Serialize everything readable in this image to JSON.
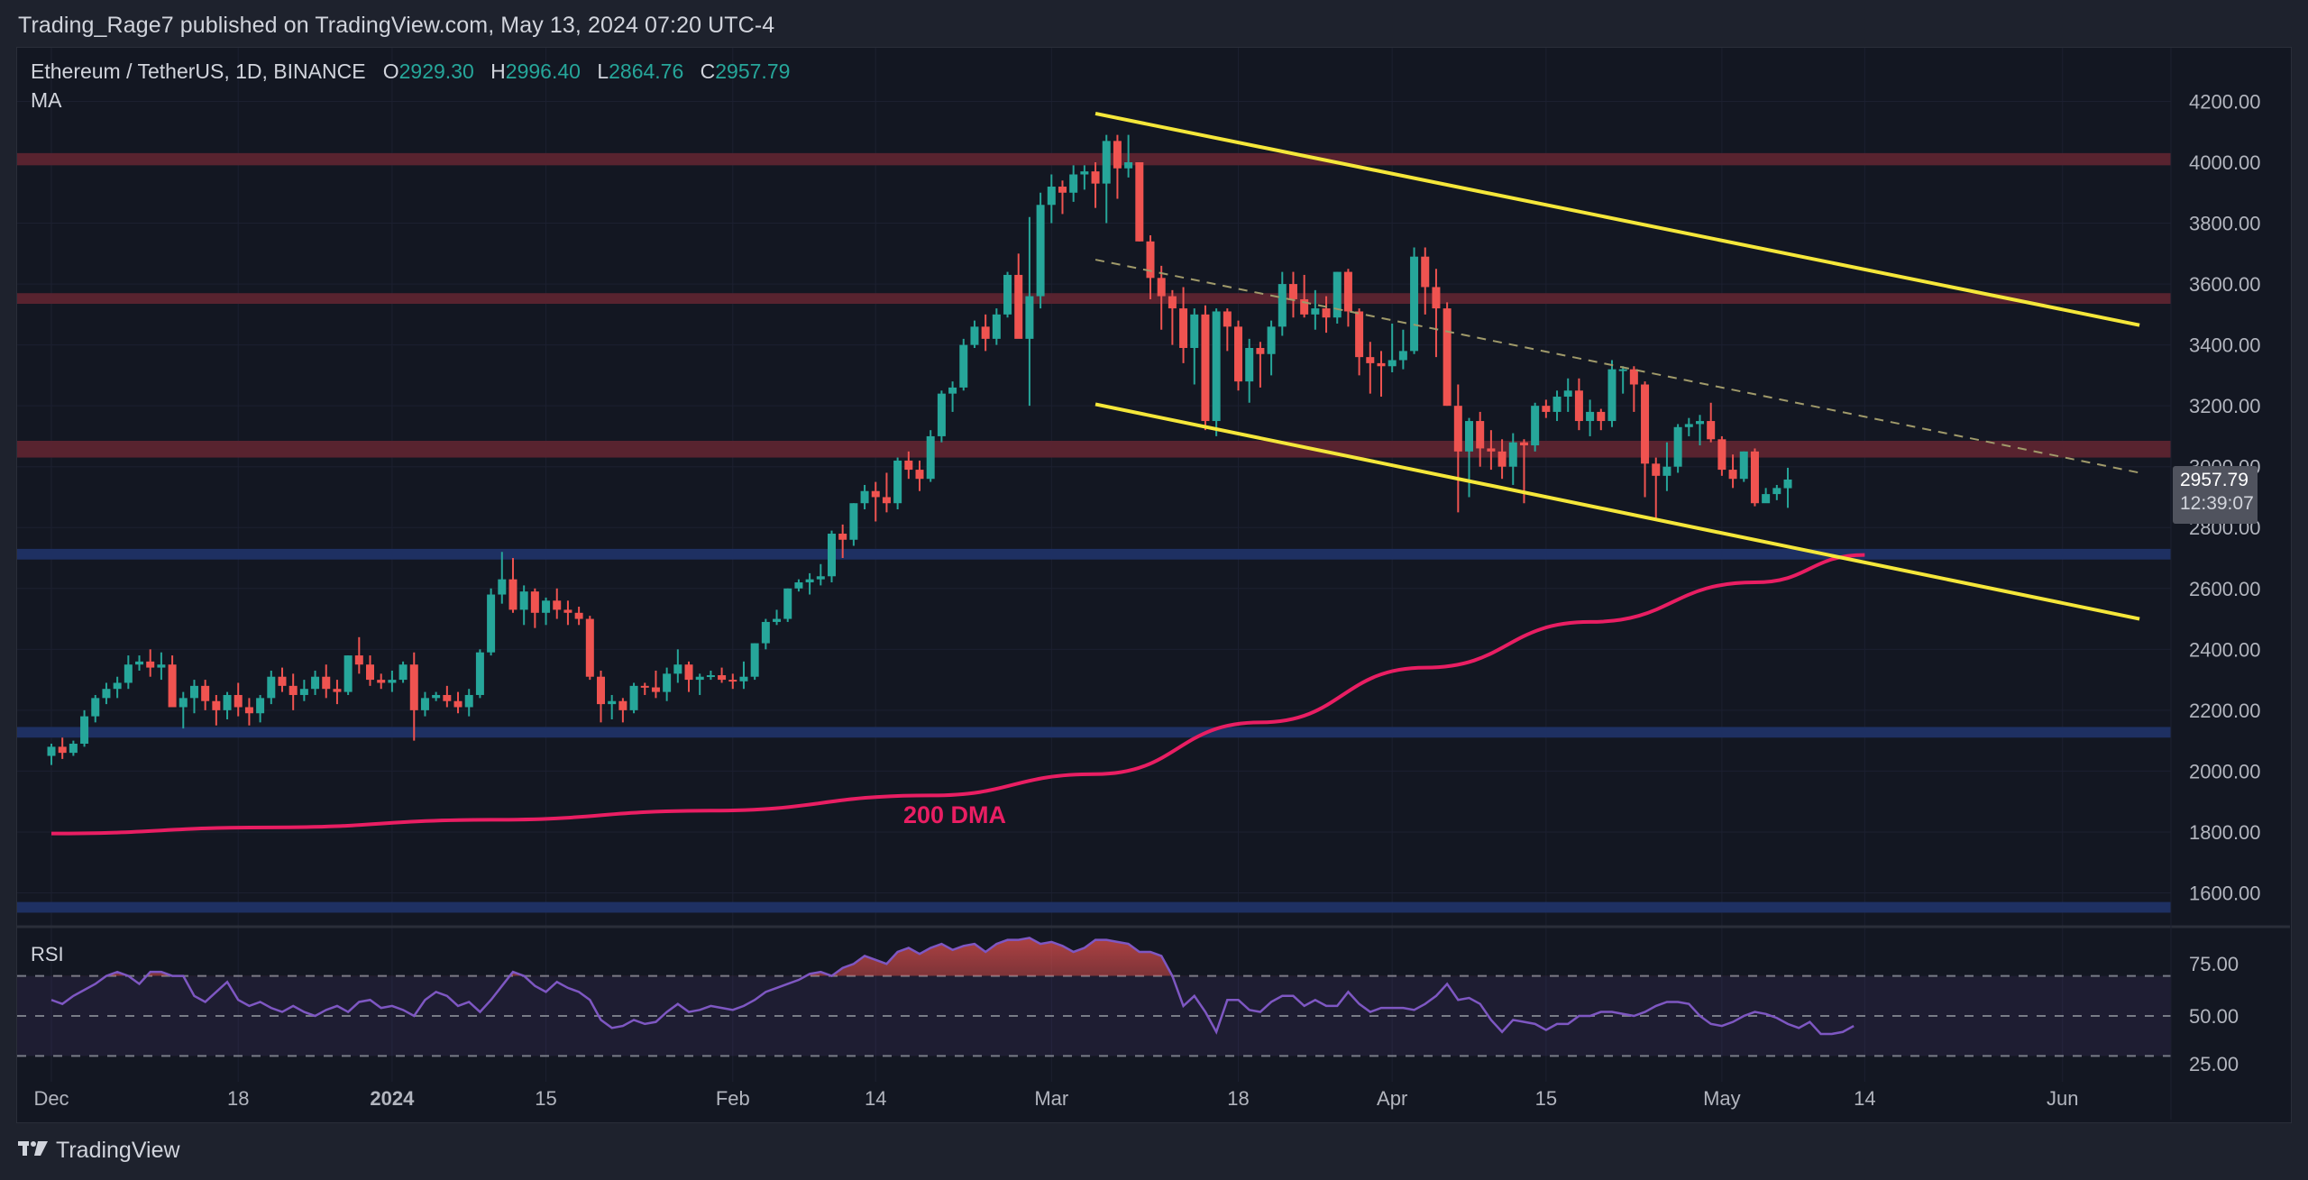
{
  "header": {
    "published_text": "Trading_Rage7 published on TradingView.com, May 13, 2024 07:20 UTC-4"
  },
  "legend": {
    "symbol": "Ethereum / TetherUS, 1D, BINANCE",
    "open_label": "O",
    "open": "2929.30",
    "high_label": "H",
    "high": "2996.40",
    "low_label": "L",
    "low": "2864.76",
    "close_label": "C",
    "close": "2957.79",
    "indicator": "MA"
  },
  "price_tag": {
    "price": "2957.79",
    "countdown": "12:39:07"
  },
  "annotations": {
    "dma_label": "200 DMA"
  },
  "rsi": {
    "label": "RSI"
  },
  "footer": {
    "brand": "TradingView",
    "logo": "17"
  },
  "colors": {
    "up": "#26a69a",
    "down": "#ef5350",
    "background": "#131722",
    "resistance_zone": "#5c2430",
    "support_zone": "#1f3166",
    "channel": "#f5e73a",
    "dma": "#e91e63",
    "rsi_line": "#7e57c2"
  },
  "chart_data": {
    "type": "candlestick",
    "title": "Ethereum / TetherUS, 1D, BINANCE",
    "xlabel": "",
    "ylabel": "",
    "ylim": [
      1500,
      4300
    ],
    "y_ticks": [
      "4200.00",
      "4000.00",
      "3800.00",
      "3600.00",
      "3400.00",
      "3200.00",
      "3000.00",
      "2800.00",
      "2600.00",
      "2400.00",
      "2200.00",
      "2000.00",
      "1800.00",
      "1600.00"
    ],
    "x_ticks": [
      {
        "label": "Dec",
        "day": 0,
        "bold": false
      },
      {
        "label": "18",
        "day": 17,
        "bold": false
      },
      {
        "label": "2024",
        "day": 31,
        "bold": true
      },
      {
        "label": "15",
        "day": 45,
        "bold": false
      },
      {
        "label": "Feb",
        "day": 62,
        "bold": false
      },
      {
        "label": "14",
        "day": 75,
        "bold": false
      },
      {
        "label": "Mar",
        "day": 91,
        "bold": false
      },
      {
        "label": "18",
        "day": 108,
        "bold": false
      },
      {
        "label": "Apr",
        "day": 122,
        "bold": false
      },
      {
        "label": "15",
        "day": 136,
        "bold": false
      },
      {
        "label": "May",
        "day": 152,
        "bold": false
      },
      {
        "label": "14",
        "day": 165,
        "bold": false
      },
      {
        "label": "Jun",
        "day": 183,
        "bold": false
      }
    ],
    "start_date": "2023-12-01",
    "candles_ohlc": [
      [
        2050,
        2090,
        2020,
        2080
      ],
      [
        2080,
        2110,
        2040,
        2060
      ],
      [
        2060,
        2100,
        2050,
        2090
      ],
      [
        2090,
        2200,
        2080,
        2180
      ],
      [
        2180,
        2250,
        2160,
        2240
      ],
      [
        2240,
        2290,
        2220,
        2270
      ],
      [
        2270,
        2310,
        2240,
        2290
      ],
      [
        2290,
        2380,
        2270,
        2350
      ],
      [
        2350,
        2380,
        2330,
        2360
      ],
      [
        2360,
        2400,
        2310,
        2340
      ],
      [
        2340,
        2390,
        2300,
        2350
      ],
      [
        2350,
        2380,
        2230,
        2210
      ],
      [
        2210,
        2260,
        2140,
        2240
      ],
      [
        2240,
        2300,
        2190,
        2280
      ],
      [
        2280,
        2300,
        2200,
        2230
      ],
      [
        2230,
        2250,
        2150,
        2200
      ],
      [
        2200,
        2260,
        2170,
        2250
      ],
      [
        2250,
        2290,
        2180,
        2210
      ],
      [
        2210,
        2240,
        2150,
        2190
      ],
      [
        2190,
        2250,
        2160,
        2240
      ],
      [
        2240,
        2330,
        2220,
        2310
      ],
      [
        2310,
        2340,
        2260,
        2280
      ],
      [
        2280,
        2320,
        2200,
        2250
      ],
      [
        2250,
        2300,
        2230,
        2270
      ],
      [
        2270,
        2330,
        2250,
        2310
      ],
      [
        2310,
        2350,
        2240,
        2270
      ],
      [
        2270,
        2300,
        2220,
        2260
      ],
      [
        2260,
        2380,
        2250,
        2380
      ],
      [
        2380,
        2440,
        2320,
        2350
      ],
      [
        2350,
        2380,
        2280,
        2300
      ],
      [
        2300,
        2320,
        2270,
        2290
      ],
      [
        2290,
        2330,
        2260,
        2300
      ],
      [
        2300,
        2360,
        2290,
        2350
      ],
      [
        2350,
        2390,
        2100,
        2200
      ],
      [
        2200,
        2260,
        2180,
        2240
      ],
      [
        2240,
        2260,
        2230,
        2250
      ],
      [
        2250,
        2280,
        2210,
        2230
      ],
      [
        2230,
        2260,
        2190,
        2210
      ],
      [
        2210,
        2270,
        2180,
        2250
      ],
      [
        2250,
        2400,
        2240,
        2390
      ],
      [
        2390,
        2600,
        2380,
        2580
      ],
      [
        2580,
        2720,
        2550,
        2630
      ],
      [
        2630,
        2700,
        2520,
        2530
      ],
      [
        2530,
        2610,
        2480,
        2590
      ],
      [
        2590,
        2600,
        2470,
        2520
      ],
      [
        2520,
        2570,
        2480,
        2560
      ],
      [
        2560,
        2600,
        2500,
        2530
      ],
      [
        2530,
        2560,
        2480,
        2520
      ],
      [
        2520,
        2540,
        2480,
        2500
      ],
      [
        2500,
        2510,
        2300,
        2310
      ],
      [
        2310,
        2330,
        2160,
        2220
      ],
      [
        2220,
        2250,
        2170,
        2230
      ],
      [
        2230,
        2240,
        2160,
        2200
      ],
      [
        2200,
        2290,
        2190,
        2280
      ],
      [
        2280,
        2290,
        2250,
        2275
      ],
      [
        2275,
        2330,
        2240,
        2260
      ],
      [
        2260,
        2340,
        2230,
        2320
      ],
      [
        2320,
        2400,
        2290,
        2350
      ],
      [
        2350,
        2360,
        2260,
        2300
      ],
      [
        2300,
        2320,
        2250,
        2310
      ],
      [
        2310,
        2330,
        2300,
        2315
      ],
      [
        2315,
        2340,
        2290,
        2300
      ],
      [
        2300,
        2320,
        2270,
        2295
      ],
      [
        2295,
        2360,
        2270,
        2310
      ],
      [
        2310,
        2420,
        2300,
        2420
      ],
      [
        2420,
        2500,
        2400,
        2490
      ],
      [
        2490,
        2530,
        2480,
        2500
      ],
      [
        2500,
        2600,
        2490,
        2600
      ],
      [
        2600,
        2630,
        2590,
        2620
      ],
      [
        2620,
        2650,
        2580,
        2630
      ],
      [
        2630,
        2680,
        2610,
        2640
      ],
      [
        2640,
        2790,
        2620,
        2780
      ],
      [
        2780,
        2810,
        2700,
        2760
      ],
      [
        2760,
        2880,
        2740,
        2880
      ],
      [
        2880,
        2940,
        2860,
        2920
      ],
      [
        2920,
        2950,
        2820,
        2900
      ],
      [
        2900,
        2980,
        2850,
        2880
      ],
      [
        2880,
        3030,
        2860,
        3020
      ],
      [
        3020,
        3050,
        2960,
        2990
      ],
      [
        2990,
        3020,
        2920,
        2960
      ],
      [
        2960,
        3120,
        2950,
        3100
      ],
      [
        3100,
        3250,
        3080,
        3240
      ],
      [
        3240,
        3280,
        3180,
        3260
      ],
      [
        3260,
        3420,
        3250,
        3400
      ],
      [
        3400,
        3480,
        3390,
        3460
      ],
      [
        3460,
        3500,
        3380,
        3420
      ],
      [
        3420,
        3520,
        3400,
        3500
      ],
      [
        3500,
        3640,
        3490,
        3630
      ],
      [
        3630,
        3700,
        3600,
        3420
      ],
      [
        3420,
        3820,
        3200,
        3560
      ],
      [
        3560,
        3900,
        3520,
        3860
      ],
      [
        3860,
        3960,
        3800,
        3920
      ],
      [
        3920,
        3940,
        3830,
        3900
      ],
      [
        3900,
        3990,
        3870,
        3960
      ],
      [
        3960,
        3990,
        3910,
        3970
      ],
      [
        3970,
        4000,
        3850,
        3930
      ],
      [
        3930,
        4090,
        3800,
        4070
      ],
      [
        4070,
        4090,
        3880,
        3980
      ],
      [
        3980,
        4090,
        3950,
        4000
      ],
      [
        4000,
        3990,
        3740,
        3740
      ],
      [
        3740,
        3760,
        3550,
        3620
      ],
      [
        3620,
        3660,
        3450,
        3560
      ],
      [
        3560,
        3580,
        3400,
        3520
      ],
      [
        3520,
        3590,
        3340,
        3390
      ],
      [
        3390,
        3520,
        3270,
        3500
      ],
      [
        3500,
        3530,
        3120,
        3150
      ],
      [
        3150,
        3520,
        3100,
        3510
      ],
      [
        3510,
        3520,
        3380,
        3460
      ],
      [
        3460,
        3480,
        3250,
        3280
      ],
      [
        3280,
        3420,
        3210,
        3390
      ],
      [
        3390,
        3410,
        3260,
        3370
      ],
      [
        3370,
        3480,
        3300,
        3460
      ],
      [
        3460,
        3640,
        3430,
        3600
      ],
      [
        3600,
        3640,
        3490,
        3550
      ],
      [
        3550,
        3630,
        3490,
        3500
      ],
      [
        3500,
        3580,
        3450,
        3520
      ],
      [
        3520,
        3560,
        3440,
        3490
      ],
      [
        3490,
        3640,
        3470,
        3640
      ],
      [
        3640,
        3650,
        3460,
        3510
      ],
      [
        3510,
        3520,
        3300,
        3360
      ],
      [
        3360,
        3410,
        3240,
        3340
      ],
      [
        3340,
        3380,
        3230,
        3330
      ],
      [
        3330,
        3470,
        3310,
        3350
      ],
      [
        3350,
        3450,
        3320,
        3380
      ],
      [
        3380,
        3720,
        3370,
        3690
      ],
      [
        3690,
        3720,
        3500,
        3590
      ],
      [
        3590,
        3650,
        3360,
        3520
      ],
      [
        3520,
        3540,
        3200,
        3200
      ],
      [
        3200,
        3270,
        2850,
        3050
      ],
      [
        3050,
        3160,
        2900,
        3150
      ],
      [
        3150,
        3180,
        3000,
        3060
      ],
      [
        3060,
        3120,
        2990,
        3050
      ],
      [
        3050,
        3090,
        2960,
        3000
      ],
      [
        3000,
        3110,
        2940,
        3080
      ],
      [
        3080,
        3090,
        2880,
        3070
      ],
      [
        3070,
        3210,
        3050,
        3200
      ],
      [
        3200,
        3220,
        3160,
        3180
      ],
      [
        3180,
        3250,
        3150,
        3230
      ],
      [
        3230,
        3290,
        3180,
        3250
      ],
      [
        3250,
        3290,
        3120,
        3150
      ],
      [
        3150,
        3220,
        3100,
        3180
      ],
      [
        3180,
        3190,
        3120,
        3150
      ],
      [
        3150,
        3350,
        3130,
        3320
      ],
      [
        3320,
        3330,
        3240,
        3320
      ],
      [
        3320,
        3330,
        3180,
        3270
      ],
      [
        3270,
        3280,
        2900,
        3010
      ],
      [
        3010,
        3030,
        2830,
        2970
      ],
      [
        2970,
        3080,
        2920,
        3000
      ],
      [
        3000,
        3140,
        2980,
        3130
      ],
      [
        3130,
        3160,
        3100,
        3140
      ],
      [
        3140,
        3170,
        3070,
        3150
      ],
      [
        3150,
        3210,
        3080,
        3090
      ],
      [
        3090,
        3100,
        2970,
        2990
      ],
      [
        2990,
        3040,
        2930,
        2960
      ],
      [
        2960,
        3050,
        2950,
        3050
      ],
      [
        3050,
        3060,
        2870,
        2880
      ],
      [
        2880,
        2930,
        2890,
        2910
      ],
      [
        2910,
        2940,
        2890,
        2930
      ],
      [
        2929.3,
        2996.4,
        2864.76,
        2957.79
      ]
    ],
    "moving_average_200": {
      "label": "200 DMA",
      "points": [
        [
          0,
          1795
        ],
        [
          20,
          1815
        ],
        [
          40,
          1840
        ],
        [
          60,
          1870
        ],
        [
          80,
          1920
        ],
        [
          95,
          1990
        ],
        [
          110,
          2160
        ],
        [
          125,
          2340
        ],
        [
          140,
          2490
        ],
        [
          155,
          2620
        ],
        [
          165,
          2710
        ]
      ]
    },
    "zones": [
      {
        "type": "resistance",
        "from": 3990,
        "to": 4030
      },
      {
        "type": "resistance",
        "from": 3535,
        "to": 3570
      },
      {
        "type": "resistance",
        "from": 3030,
        "to": 3085
      },
      {
        "type": "support",
        "from": 2695,
        "to": 2730
      },
      {
        "type": "support",
        "from": 2110,
        "to": 2145
      },
      {
        "type": "support",
        "from": 1535,
        "to": 1570
      }
    ],
    "channel": {
      "upper": [
        [
          95,
          4160
        ],
        [
          190,
          3465
        ]
      ],
      "lower": [
        [
          95,
          3205
        ],
        [
          190,
          2500
        ]
      ],
      "midline_dashed": [
        [
          95,
          3680
        ],
        [
          190,
          2980
        ]
      ]
    },
    "rsi_levels": [
      75,
      50,
      25
    ],
    "rsi_values": [
      58,
      56,
      60,
      63,
      66,
      70,
      72,
      70,
      66,
      72,
      72,
      70,
      70,
      60,
      57,
      62,
      67,
      58,
      55,
      57,
      54,
      52,
      55,
      52,
      50,
      53,
      55,
      52,
      57,
      58,
      54,
      55,
      53,
      50,
      58,
      62,
      60,
      55,
      57,
      52,
      58,
      65,
      72,
      70,
      65,
      62,
      67,
      64,
      62,
      58,
      48,
      44,
      45,
      48,
      46,
      47,
      52,
      56,
      52,
      53,
      55,
      54,
      53,
      55,
      58,
      62,
      64,
      66,
      68,
      71,
      72,
      70,
      74,
      76,
      80,
      78,
      76,
      82,
      84,
      81,
      84,
      86,
      83,
      85,
      86,
      82,
      86,
      88,
      88,
      89,
      86,
      87,
      85,
      82,
      84,
      88,
      88,
      87,
      86,
      82,
      82,
      80,
      70,
      55,
      60,
      52,
      42,
      58,
      58,
      53,
      52,
      57,
      60,
      60,
      55,
      58,
      55,
      55,
      62,
      56,
      52,
      54,
      54,
      54,
      53,
      56,
      60,
      66,
      58,
      59,
      56,
      48,
      42,
      48,
      47,
      46,
      43,
      46,
      46,
      50,
      50,
      52,
      52,
      51,
      50,
      52,
      55,
      57,
      57,
      56,
      50,
      46,
      45,
      47,
      50,
      52,
      51,
      49,
      46,
      44,
      47,
      41,
      41,
      42,
      45
    ]
  }
}
